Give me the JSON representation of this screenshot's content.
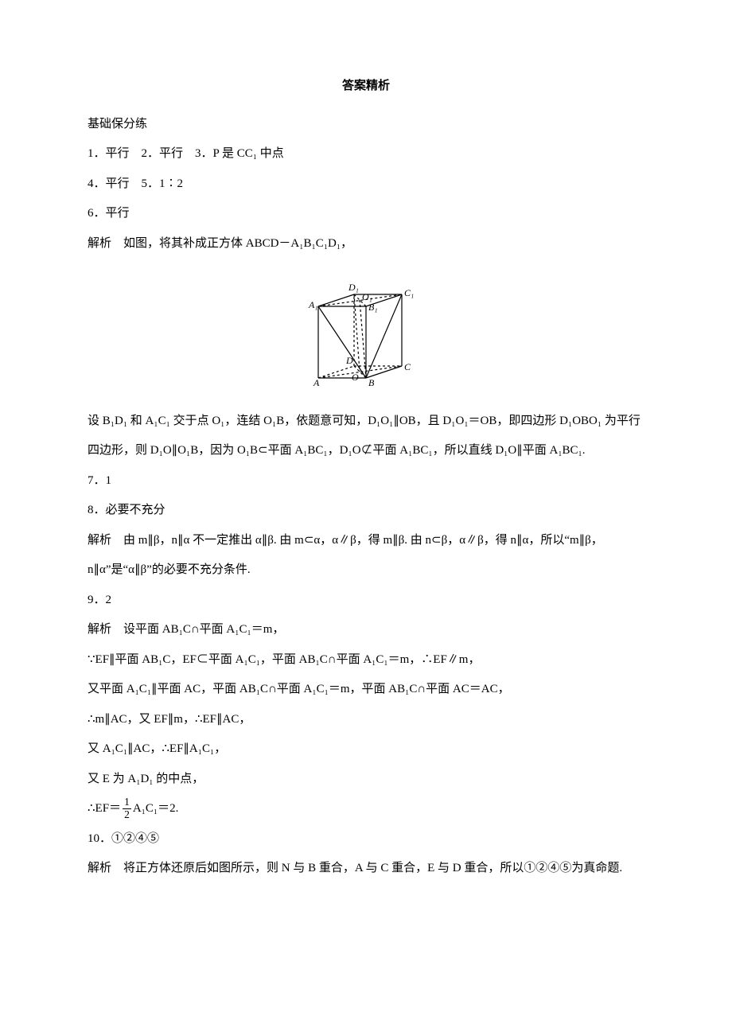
{
  "header": {
    "title": "答案精析"
  },
  "section": {
    "title": "基础保分练"
  },
  "p1": {
    "t": "1．平行　2．平行　3．P 是 CC₁ 中点"
  },
  "p2": {
    "t": "4．平行　5．1∶2"
  },
  "p3": {
    "t": "6．平行"
  },
  "p4": {
    "t": "解析　如图，将其补成正方体 ABCD－A₁B₁C₁D₁，"
  },
  "p5": {
    "t": "设 B₁D₁ 和 A₁C₁ 交于点 O₁，连结 O₁B，依题意可知，D₁O₁∥OB，且 D₁O₁＝OB，即四边形 D₁OBO₁ 为平行四边形，则 D₁O∥O₁B，因为 O₁B⊂平面 A₁BC₁，D₁O⊄平面 A₁BC₁，所以直线 D₁O∥平面 A₁BC₁."
  },
  "p6": {
    "t": "7．1"
  },
  "p7": {
    "t": "8．必要不充分"
  },
  "p8": {
    "t": "解析　由 m∥β，n∥α 不一定推出 α∥β. 由 m⊂α，α∥β，得 m∥β. 由 n⊂β，α∥β，得 n∥α，所以“m∥β，n∥α”是“α∥β”的必要不充分条件."
  },
  "p9": {
    "t": "9．2"
  },
  "p10": {
    "t": "解析　设平面 AB₁C∩平面 A₁C₁＝m，"
  },
  "p11": {
    "t": "∵EF∥平面 AB₁C，EF⊂平面 A₁C₁，平面 AB₁C∩平面 A₁C₁＝m，∴EF∥m，"
  },
  "p12": {
    "t": "又平面 A₁C₁∥平面 AC，平面 AB₁C∩平面 A₁C₁＝m，平面 AB₁C∩平面 AC＝AC，"
  },
  "p13": {
    "t": "∴m∥AC，又 EF∥m，∴EF∥AC，"
  },
  "p14": {
    "t": "又 A₁C₁∥AC，∴EF∥A₁C₁，"
  },
  "p15": {
    "t": "又 E 为 A₁D₁ 的中点，"
  },
  "p16": {
    "pre": "∴EF＝",
    "num": "1",
    "den": "2",
    "post": "A₁C₁＝2."
  },
  "p17": {
    "t": "10．①②④⑤"
  },
  "p18": {
    "t": "解析　将正方体还原后如图所示，则 N 与 B 重合，A 与 C 重合，E 与 D 重合，所以①②④⑤为真命题."
  },
  "fig": {
    "labels": {
      "A": "A",
      "B": "B",
      "C": "C",
      "D": "D",
      "A1": "A₁",
      "B1": "B₁",
      "C1": "C₁",
      "D1": "D₁",
      "O": "O",
      "O1": "O₁"
    },
    "style": {
      "stroke": "#000000",
      "stroke_width": 1.2,
      "dash": "3,3",
      "font_size": 12,
      "width": 160,
      "height": 150
    }
  }
}
